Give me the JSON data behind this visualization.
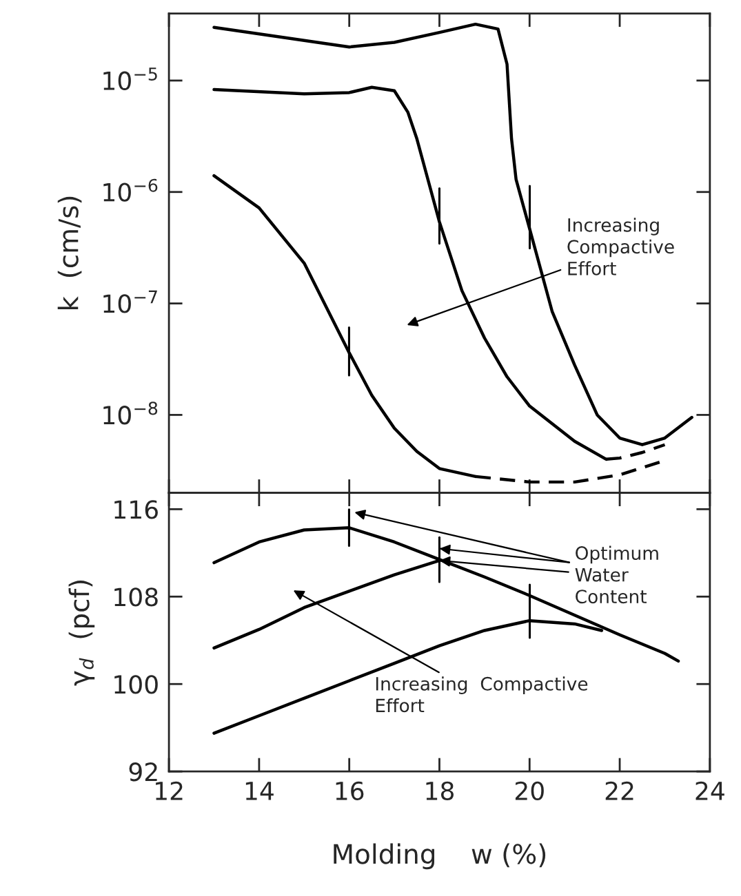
{
  "chart_data": [
    {
      "type": "line",
      "ylabel": "k  (cm/s)",
      "log": true,
      "tick_labels": "y",
      "grid": false,
      "xlim": [
        12,
        24
      ],
      "xticks": [
        12,
        14,
        16,
        18,
        20,
        22,
        24
      ],
      "ylim": [
        2e-09,
        4e-05
      ],
      "yticks": [
        {
          "value": 1e-08,
          "label": "10$^{−8}$"
        },
        {
          "value": 1e-07,
          "label": "10$^{−7}$"
        },
        {
          "value": 1e-06,
          "label": "10$^{−6}$"
        },
        {
          "value": 1e-05,
          "label": "10$^{−5}$"
        }
      ],
      "series": [
        {
          "color": "#000000",
          "line_style": "solid",
          "x": [
            13,
            16,
            17,
            18,
            18.8,
            19.3,
            19.5,
            19.6,
            19.7,
            20,
            20.5,
            21,
            21.5,
            22,
            22.5,
            23,
            23.6
          ],
          "values": [
            3e-05,
            2e-05,
            2.2e-05,
            2.7e-05,
            3.2e-05,
            2.9e-05,
            1.4e-05,
            3e-06,
            1.3e-06,
            4.7e-07,
            8.5e-08,
            2.8e-08,
            1e-08,
            6.2e-09,
            5.4e-09,
            6.2e-09,
            9.5e-09
          ]
        },
        {
          "color": "#000000",
          "line_style": "solid",
          "x": [
            13,
            15,
            16,
            16.5,
            17,
            17.3,
            17.5,
            18,
            18.5,
            19,
            19.5,
            20,
            21,
            21.7
          ],
          "values": [
            8.3e-06,
            7.6e-06,
            7.8e-06,
            8.7e-06,
            8.1e-06,
            5.2e-06,
            3e-06,
            5.4e-07,
            1.3e-07,
            4.9e-08,
            2.2e-08,
            1.2e-08,
            5.8e-09,
            4e-09
          ]
        },
        {
          "color": "#000000",
          "line_style": "dashed",
          "x": [
            21.7,
            22,
            22.5,
            23
          ],
          "values": [
            4e-09,
            4.1e-09,
            4.6e-09,
            5.4e-09
          ]
        },
        {
          "color": "#000000",
          "line_style": "solid",
          "x": [
            13,
            14,
            15,
            16,
            16.5,
            17,
            17.5,
            18,
            18.8
          ],
          "values": [
            1.4e-06,
            7.2e-07,
            2.3e-07,
            3.6e-08,
            1.5e-08,
            7.6e-09,
            4.7e-09,
            3.3e-09,
            2.8e-09
          ]
        },
        {
          "color": "#000000",
          "line_style": "dashed",
          "x": [
            18.8,
            20,
            21,
            22,
            23
          ],
          "values": [
            2.8e-09,
            2.5e-09,
            2.5e-09,
            2.9e-09,
            3.9e-09
          ]
        }
      ],
      "annotations": [
        "Increasing\nCompactive\nEffort"
      ]
    },
    {
      "type": "line",
      "ylabel": "γ$_{d}$  (pcf)",
      "xlabel": "Molding    w (%)",
      "grid": false,
      "xlim": [
        12,
        24
      ],
      "xticks": [
        12,
        14,
        16,
        18,
        20,
        22,
        24
      ],
      "ylim": [
        92,
        117.5
      ],
      "yticks": [
        92,
        100,
        108,
        116
      ],
      "series": [
        {
          "color": "#000000",
          "line_style": "solid",
          "x": [
            13,
            14,
            15,
            16,
            17,
            18,
            19,
            20,
            21,
            22,
            23,
            23.3
          ],
          "values": [
            111.1,
            113.0,
            114.1,
            114.3,
            113.0,
            111.4,
            109.8,
            108.1,
            106.3,
            104.5,
            102.8,
            102.1
          ]
        },
        {
          "color": "#000000",
          "line_style": "solid",
          "x": [
            13,
            14,
            15,
            16,
            17,
            18
          ],
          "values": [
            103.3,
            105.0,
            107.0,
            108.5,
            110.0,
            111.3
          ]
        },
        {
          "color": "#000000",
          "line_style": "solid",
          "x": [
            13,
            14,
            15,
            16,
            17,
            18,
            19,
            20,
            21,
            21.6
          ],
          "values": [
            95.5,
            97.1,
            98.7,
            100.3,
            101.9,
            103.5,
            104.9,
            105.8,
            105.5,
            104.9
          ]
        }
      ],
      "annotations": [
        {
          "text": "Optimum\nWater\nContent",
          "x": 18,
          "y": 111.3
        },
        "Increasing  Compactive\nEffort"
      ]
    }
  ]
}
